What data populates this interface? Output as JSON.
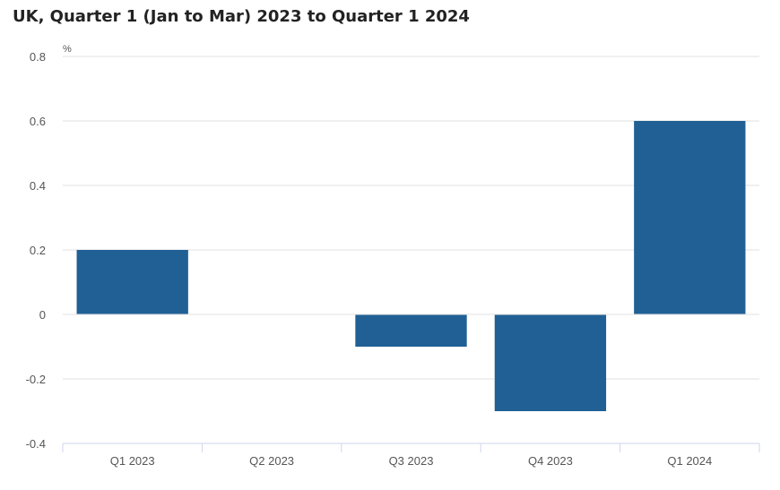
{
  "title": "UK, Quarter 1 (Jan to Mar) 2023 to Quarter 1 2024",
  "chart_data": {
    "type": "bar",
    "title": "UK, Quarter 1 (Jan to Mar) 2023 to Quarter 1 2024",
    "categories": [
      "Q1 2023",
      "Q2 2023",
      "Q3 2023",
      "Q4 2023",
      "Q1 2024"
    ],
    "values": [
      0.2,
      0.0,
      -0.1,
      -0.3,
      0.6
    ],
    "y_unit": "%",
    "ylim": [
      -0.4,
      0.8
    ],
    "y_ticks": [
      0.8,
      0.6,
      0.4,
      0.2,
      0,
      -0.2,
      -0.4
    ],
    "y_tick_labels": [
      "0.8",
      "0.6",
      "0.4",
      "0.2",
      "0",
      "-0.2",
      "-0.4"
    ],
    "grid": true,
    "legend": "none",
    "bar_color": "#206095"
  }
}
